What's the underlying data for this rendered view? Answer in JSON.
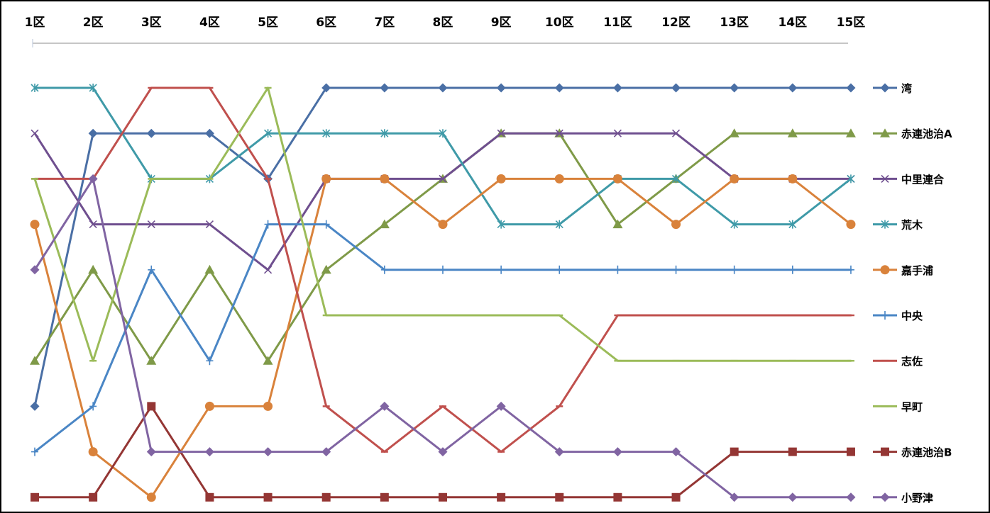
{
  "chart_data": {
    "type": "line",
    "title": "",
    "xlabel": "",
    "ylabel": "",
    "categories": [
      "1区",
      "2区",
      "3区",
      "4区",
      "5区",
      "6区",
      "7区",
      "8区",
      "9区",
      "10区",
      "11区",
      "12区",
      "13区",
      "14区",
      "15区"
    ],
    "y_axis": {
      "min": 1,
      "max": 10,
      "reversed": true,
      "tick_labels_shown": false
    },
    "grid": false,
    "legend_position": "right",
    "series": [
      {
        "name": "湾",
        "color": "#4a6fa5",
        "marker": "diamond",
        "values": [
          8,
          2,
          2,
          2,
          3,
          1,
          1,
          1,
          1,
          1,
          1,
          1,
          1,
          1,
          1
        ]
      },
      {
        "name": "赤連池治A",
        "color": "#7f9a48",
        "marker": "triangle",
        "values": [
          7,
          5,
          7,
          5,
          7,
          5,
          4,
          3,
          2,
          2,
          4,
          3,
          2,
          2,
          2
        ]
      },
      {
        "name": "中里連合",
        "color": "#6f4f8f",
        "marker": "x",
        "values": [
          2,
          4,
          4,
          4,
          5,
          3,
          3,
          3,
          2,
          2,
          2,
          2,
          3,
          3,
          3
        ]
      },
      {
        "name": "荒木",
        "color": "#3f9aa8",
        "marker": "star",
        "values": [
          1,
          1,
          3,
          3,
          2,
          2,
          2,
          2,
          4,
          4,
          3,
          3,
          4,
          4,
          3
        ]
      },
      {
        "name": "嘉手浦",
        "color": "#d9823b",
        "marker": "circle",
        "values": [
          4,
          9,
          10,
          8,
          8,
          3,
          3,
          4,
          3,
          3,
          3,
          4,
          3,
          3,
          4
        ]
      },
      {
        "name": "中央",
        "color": "#4a86c5",
        "marker": "plus",
        "values": [
          9,
          8,
          5,
          7,
          4,
          4,
          5,
          5,
          5,
          5,
          5,
          5,
          5,
          5,
          5
        ]
      },
      {
        "name": "志佐",
        "color": "#c0504d",
        "marker": "dash",
        "values": [
          3,
          3,
          1,
          1,
          3,
          8,
          9,
          8,
          9,
          8,
          6,
          6,
          6,
          6,
          6
        ]
      },
      {
        "name": "早町",
        "color": "#9bbb59",
        "marker": "dash",
        "values": [
          3,
          7,
          3,
          3,
          1,
          6,
          6,
          6,
          6,
          6,
          7,
          7,
          7,
          7,
          7
        ]
      },
      {
        "name": "赤連池治B",
        "color": "#943634",
        "marker": "square",
        "values": [
          10,
          10,
          8,
          10,
          10,
          10,
          10,
          10,
          10,
          10,
          10,
          10,
          9,
          9,
          9
        ]
      },
      {
        "name": "小野津",
        "color": "#8064a2",
        "marker": "diamond",
        "values": [
          5,
          3,
          9,
          9,
          9,
          9,
          8,
          9,
          8,
          9,
          9,
          9,
          10,
          10,
          10
        ]
      }
    ]
  }
}
